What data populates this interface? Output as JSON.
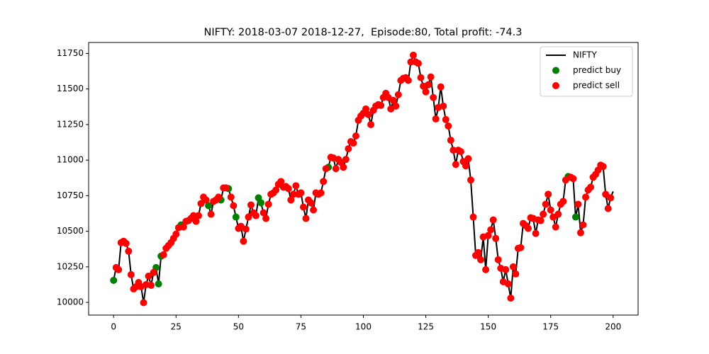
{
  "chart_data": {
    "type": "line",
    "title": "NIFTY: 2018-03-07 2018-12-27,  Episode:80, Total profit: -74.3",
    "x": [
      0,
      1,
      2,
      3,
      4,
      5,
      6,
      7,
      8,
      9,
      10,
      11,
      12,
      13,
      14,
      15,
      16,
      17,
      18,
      19,
      20,
      21,
      22,
      23,
      24,
      25,
      26,
      27,
      28,
      29,
      30,
      31,
      32,
      33,
      34,
      35,
      36,
      37,
      38,
      39,
      40,
      41,
      42,
      43,
      44,
      45,
      46,
      47,
      48,
      49,
      50,
      51,
      52,
      53,
      54,
      55,
      56,
      57,
      58,
      59,
      60,
      61,
      62,
      63,
      64,
      65,
      66,
      67,
      68,
      69,
      70,
      71,
      72,
      73,
      74,
      75,
      76,
      77,
      78,
      79,
      80,
      81,
      82,
      83,
      84,
      85,
      86,
      87,
      88,
      89,
      90,
      91,
      92,
      93,
      94,
      95,
      96,
      97,
      98,
      99,
      100,
      101,
      102,
      103,
      104,
      105,
      106,
      107,
      108,
      109,
      110,
      111,
      112,
      113,
      114,
      115,
      116,
      117,
      118,
      119,
      120,
      121,
      122,
      123,
      124,
      125,
      126,
      127,
      128,
      129,
      130,
      131,
      132,
      133,
      134,
      135,
      136,
      137,
      138,
      139,
      140,
      141,
      142,
      143,
      144,
      145,
      146,
      147,
      148,
      149,
      150,
      151,
      152,
      153,
      154,
      155,
      156,
      157,
      158,
      159,
      160,
      161,
      162,
      163,
      164,
      165,
      166,
      167,
      168,
      169,
      170,
      171,
      172,
      173,
      174,
      175,
      176,
      177,
      178,
      179,
      180,
      181,
      182,
      183,
      184,
      185,
      186,
      187,
      188,
      189,
      190,
      191,
      192,
      193,
      194,
      195,
      196,
      197,
      198,
      199,
      200
    ],
    "series": [
      {
        "name": "NIFTY",
        "type": "line",
        "color": "#000000",
        "values": [
          10155,
          10245,
          10230,
          10420,
          10430,
          10415,
          10360,
          10195,
          10095,
          10110,
          10140,
          10110,
          9998,
          10125,
          10185,
          10120,
          10210,
          10245,
          10130,
          10325,
          10335,
          10380,
          10400,
          10420,
          10450,
          10480,
          10525,
          10545,
          10530,
          10570,
          10575,
          10590,
          10610,
          10570,
          10610,
          10695,
          10740,
          10720,
          10680,
          10620,
          10710,
          10720,
          10740,
          10720,
          10805,
          10805,
          10800,
          10740,
          10680,
          10600,
          10520,
          10535,
          10430,
          10515,
          10600,
          10685,
          10630,
          10610,
          10735,
          10700,
          10630,
          10590,
          10690,
          10760,
          10770,
          10790,
          10830,
          10850,
          10810,
          10815,
          10800,
          10720,
          10760,
          10820,
          10760,
          10770,
          10670,
          10590,
          10720,
          10700,
          10650,
          10770,
          10760,
          10770,
          10850,
          10940,
          10950,
          11020,
          11015,
          10940,
          11005,
          10985,
          10950,
          11005,
          11080,
          11130,
          11120,
          11170,
          11280,
          11310,
          11330,
          11360,
          11320,
          11250,
          11350,
          11380,
          11390,
          11385,
          11440,
          11470,
          11440,
          11360,
          11420,
          11380,
          11460,
          11560,
          11575,
          11580,
          11560,
          11690,
          11738,
          11690,
          11680,
          11580,
          11520,
          11480,
          11530,
          11585,
          11440,
          11290,
          11370,
          11515,
          11380,
          11285,
          11240,
          11140,
          11070,
          10970,
          11070,
          11060,
          10990,
          10960,
          11010,
          10860,
          10600,
          10330,
          10350,
          10300,
          10460,
          10230,
          10470,
          10510,
          10580,
          10450,
          10300,
          10240,
          10145,
          10230,
          10130,
          10030,
          10250,
          10200,
          10380,
          10385,
          10555,
          10540,
          10520,
          10595,
          10590,
          10485,
          10580,
          10575,
          10620,
          10690,
          10760,
          10650,
          10600,
          10530,
          10620,
          10690,
          10710,
          10860,
          10885,
          10880,
          10870,
          10600,
          10690,
          10490,
          10545,
          10740,
          10790,
          10810,
          10880,
          10900,
          10930,
          10965,
          10955,
          10760,
          10660,
          10735,
          10780
        ]
      },
      {
        "name": "predict buy",
        "type": "scatter",
        "color": "#008000",
        "x": [
          0,
          17,
          18,
          19,
          27,
          38,
          43,
          46,
          49,
          58,
          59,
          86,
          182,
          185
        ],
        "values": [
          10155,
          10245,
          10130,
          10325,
          10545,
          10680,
          10720,
          10800,
          10600,
          10735,
          10700,
          10950,
          10885,
          10600
        ]
      },
      {
        "name": "predict sell",
        "type": "scatter",
        "color": "#ff0000",
        "x": [
          1,
          2,
          3,
          4,
          5,
          6,
          7,
          8,
          9,
          10,
          11,
          12,
          13,
          14,
          15,
          16,
          20,
          21,
          22,
          23,
          24,
          25,
          26,
          28,
          29,
          30,
          31,
          32,
          33,
          34,
          35,
          36,
          37,
          39,
          40,
          41,
          42,
          44,
          45,
          47,
          48,
          50,
          51,
          52,
          53,
          54,
          55,
          56,
          57,
          60,
          61,
          62,
          63,
          64,
          65,
          66,
          67,
          68,
          69,
          70,
          71,
          72,
          73,
          74,
          75,
          76,
          77,
          78,
          79,
          80,
          81,
          82,
          83,
          84,
          85,
          87,
          88,
          89,
          90,
          91,
          92,
          93,
          94,
          95,
          96,
          97,
          98,
          99,
          100,
          101,
          102,
          103,
          104,
          105,
          106,
          107,
          108,
          109,
          110,
          111,
          112,
          113,
          114,
          115,
          116,
          117,
          118,
          119,
          120,
          121,
          122,
          123,
          124,
          125,
          126,
          127,
          128,
          129,
          130,
          131,
          132,
          133,
          134,
          135,
          136,
          137,
          138,
          139,
          140,
          141,
          142,
          143,
          144,
          145,
          146,
          147,
          148,
          149,
          150,
          151,
          152,
          153,
          154,
          155,
          156,
          157,
          158,
          159,
          160,
          161,
          162,
          163,
          164,
          165,
          166,
          167,
          168,
          169,
          170,
          171,
          172,
          173,
          174,
          175,
          176,
          177,
          178,
          179,
          180,
          181,
          183,
          184,
          186,
          187,
          188,
          189,
          190,
          191,
          192,
          193,
          194,
          195,
          196,
          197,
          198,
          199
        ],
        "values": [
          10245,
          10230,
          10420,
          10430,
          10415,
          10360,
          10195,
          10095,
          10110,
          10140,
          10110,
          9998,
          10125,
          10185,
          10120,
          10210,
          10335,
          10380,
          10400,
          10420,
          10450,
          10480,
          10525,
          10530,
          10570,
          10575,
          10590,
          10610,
          10570,
          10610,
          10695,
          10740,
          10720,
          10620,
          10710,
          10720,
          10740,
          10805,
          10805,
          10740,
          10680,
          10520,
          10535,
          10430,
          10515,
          10600,
          10685,
          10630,
          10610,
          10630,
          10590,
          10690,
          10760,
          10770,
          10790,
          10830,
          10850,
          10810,
          10815,
          10800,
          10720,
          10760,
          10820,
          10760,
          10770,
          10670,
          10590,
          10720,
          10700,
          10650,
          10770,
          10760,
          10770,
          10850,
          10940,
          11020,
          11015,
          10940,
          11005,
          10985,
          10950,
          11005,
          11080,
          11130,
          11120,
          11170,
          11280,
          11310,
          11330,
          11360,
          11320,
          11250,
          11350,
          11380,
          11390,
          11385,
          11440,
          11470,
          11440,
          11360,
          11420,
          11380,
          11460,
          11560,
          11575,
          11580,
          11560,
          11690,
          11738,
          11690,
          11680,
          11580,
          11520,
          11480,
          11530,
          11585,
          11440,
          11290,
          11370,
          11515,
          11380,
          11285,
          11240,
          11140,
          11070,
          10970,
          11070,
          11060,
          10990,
          10960,
          11010,
          10860,
          10600,
          10330,
          10350,
          10300,
          10460,
          10230,
          10470,
          10510,
          10580,
          10450,
          10300,
          10240,
          10145,
          10230,
          10130,
          10030,
          10250,
          10200,
          10380,
          10385,
          10555,
          10540,
          10520,
          10595,
          10590,
          10485,
          10580,
          10575,
          10620,
          10690,
          10760,
          10650,
          10600,
          10530,
          10620,
          10690,
          10710,
          10860,
          10880,
          10870,
          10690,
          10490,
          10545,
          10740,
          10790,
          10810,
          10880,
          10900,
          10930,
          10965,
          10955,
          10760,
          10660,
          10735
        ]
      }
    ],
    "xlim": [
      -10,
      210
    ],
    "ylim": [
      9911,
      11827
    ],
    "xticks": [
      0,
      25,
      50,
      75,
      100,
      125,
      150,
      175,
      200
    ],
    "yticks": [
      10000,
      10250,
      10500,
      10750,
      11000,
      11250,
      11500,
      11750
    ],
    "legend": "upper right"
  }
}
